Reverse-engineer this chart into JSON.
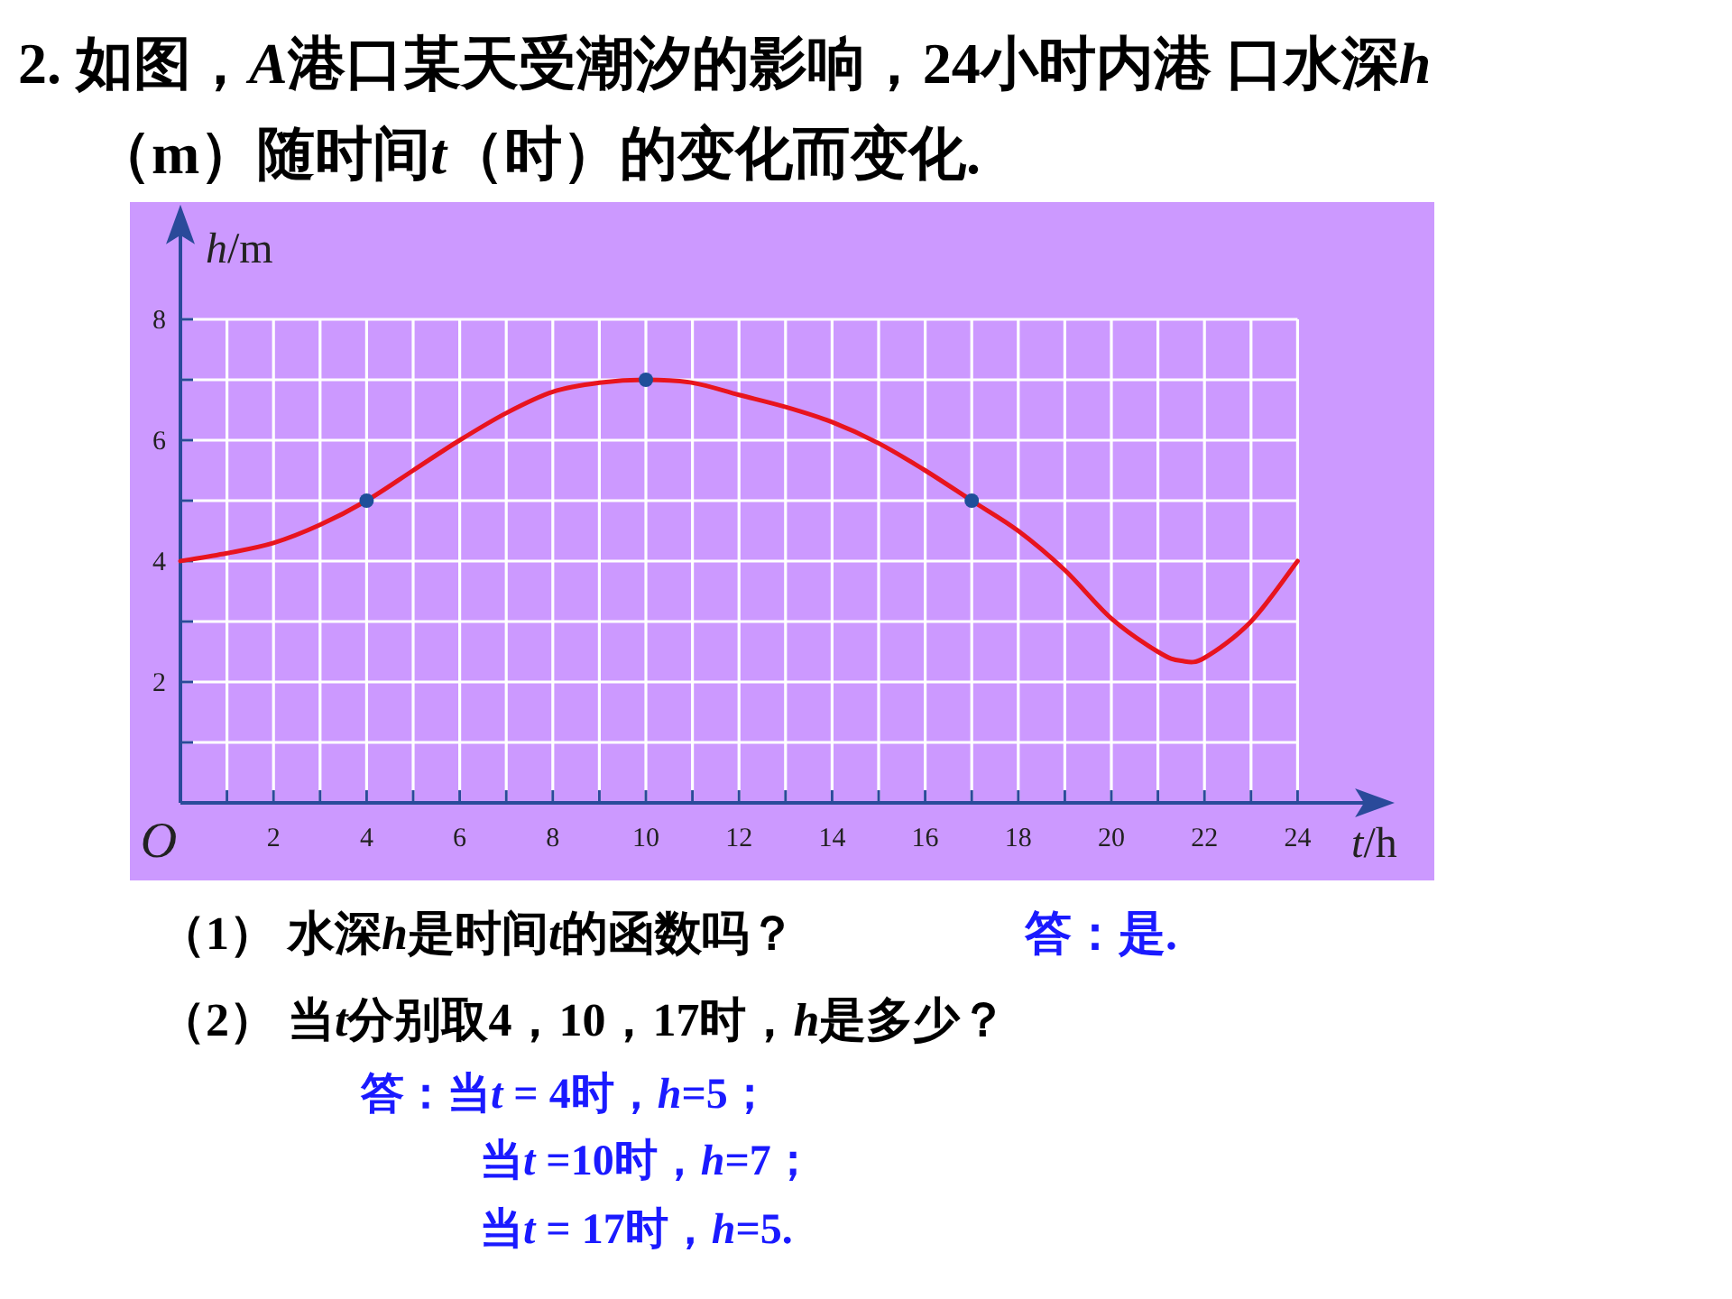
{
  "chart_data": {
    "type": "line",
    "title": "2. 如图，A港口某天受潮汐的影响，24小时内港 口水深h（m）随时间t（时）的变化而变化.",
    "xlabel": "t/h",
    "ylabel": "h/m",
    "xlim": [
      0,
      25.7
    ],
    "ylim": [
      0,
      9.6
    ],
    "xticks": [
      {
        "value": 0,
        "label": null
      },
      {
        "value": 1,
        "label": null
      },
      2,
      {
        "value": 3,
        "label": null
      },
      4,
      {
        "value": 5,
        "label": null
      },
      6,
      {
        "value": 7,
        "label": null
      },
      8,
      {
        "value": 9,
        "label": null
      },
      10,
      {
        "value": 11,
        "label": null
      },
      12,
      {
        "value": 13,
        "label": null
      },
      14,
      {
        "value": 15,
        "label": null
      },
      16,
      {
        "value": 17,
        "label": null
      },
      18,
      {
        "value": 19,
        "label": null
      },
      20,
      {
        "value": 21,
        "label": null
      },
      22,
      {
        "value": 23,
        "label": null
      },
      24
    ],
    "yticks": [
      {
        "value": 1,
        "label": null
      },
      2,
      {
        "value": 3,
        "label": null
      },
      4,
      {
        "value": 5,
        "label": null
      },
      6,
      {
        "value": 7,
        "label": null
      },
      8
    ],
    "grid": true,
    "series": [
      {
        "type": "line",
        "color": "#e8141e",
        "x": [
          0,
          1,
          2,
          3,
          4,
          5,
          6,
          7,
          8,
          9,
          10,
          11,
          12,
          13,
          14,
          15,
          16,
          17,
          18,
          19,
          20,
          21,
          21.5,
          22,
          23,
          24
        ],
        "values": [
          4,
          4.13,
          4.3,
          4.6,
          5,
          5.5,
          6.0,
          6.45,
          6.8,
          6.95,
          7,
          6.95,
          6.75,
          6.55,
          6.3,
          5.95,
          5.5,
          5,
          4.5,
          3.85,
          3.05,
          2.5,
          2.35,
          2.4,
          3.0,
          4.0
        ]
      },
      {
        "type": "scatter",
        "color": "#1f4e9a",
        "marker": "circle",
        "x": [
          4,
          10,
          17
        ],
        "values": [
          5,
          7,
          5
        ]
      }
    ],
    "annotations": [
      "O",
      "（1） 水深h是时间t的函数吗？",
      "答：是.",
      "（2） 当t分别取4，10，17时，h是多少？",
      "答：当t = 4时，h=5；",
      "当t =10时，h=7；",
      "当t = 17时，h=5."
    ]
  }
}
